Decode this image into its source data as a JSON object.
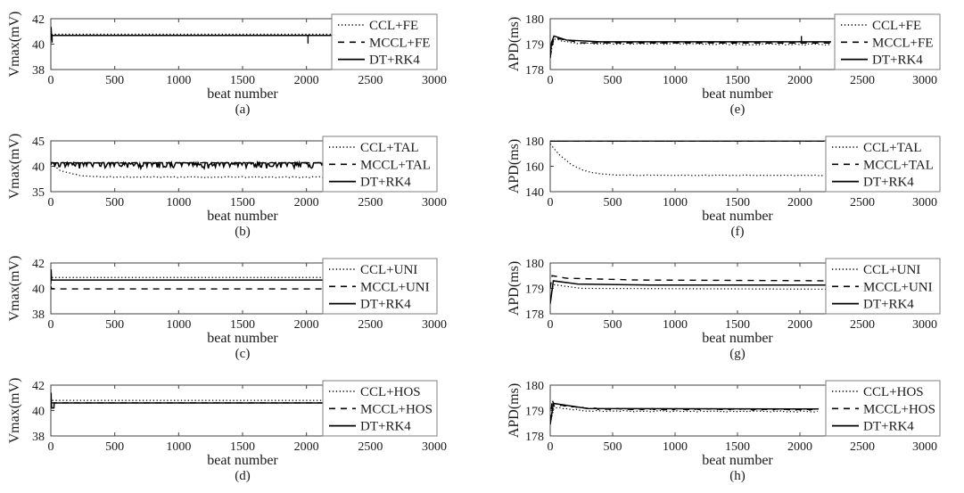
{
  "figure": {
    "background": "#ffffff",
    "line_color": "#000000",
    "axis_color": "#404040",
    "tick_label_color": "#1a1a1a",
    "legend_border_color": "#7f7f7f",
    "xlabel": "beat number"
  },
  "chart_data": [
    {
      "id": "a",
      "type": "line",
      "caption": "(a)",
      "ylabel": "Vmax(mV)",
      "xlabel": "beat number",
      "xlim": [
        0,
        3000
      ],
      "xticks": [
        0,
        500,
        1000,
        1500,
        2000,
        2500,
        3000
      ],
      "ylim": [
        38,
        42
      ],
      "yticks": [
        38,
        40,
        42
      ],
      "grid": false,
      "legend_position": "upper-right",
      "legend": [
        "CCL+FE",
        "MCCL+FE",
        "DT+RK4"
      ],
      "series": [
        {
          "name": "CCL+FE",
          "style": "dotted",
          "points": [
            [
              0,
              41.05
            ],
            [
              4,
              40.78
            ],
            [
              2200,
              40.78
            ]
          ]
        },
        {
          "name": "MCCL+FE",
          "style": "dashed",
          "points": [
            [
              0,
              40.68
            ],
            [
              2200,
              40.68
            ]
          ],
          "spikes": [
            [
              2012,
              40.05
            ]
          ]
        },
        {
          "name": "DT+RK4",
          "style": "solid",
          "points": [
            [
              0,
              40.3
            ],
            [
              2,
              41.35
            ],
            [
              5,
              40.68
            ],
            [
              2200,
              40.68
            ]
          ],
          "spikes": [
            [
              10,
              40.12
            ]
          ]
        }
      ]
    },
    {
      "id": "b",
      "type": "line",
      "caption": "(b)",
      "ylabel": "Vmax(mV)",
      "xlabel": "beat number",
      "xlim": [
        0,
        3000
      ],
      "xticks": [
        0,
        500,
        1000,
        1500,
        2000,
        2500,
        3000
      ],
      "ylim": [
        35,
        45
      ],
      "yticks": [
        35,
        40,
        45
      ],
      "grid": false,
      "legend_position": "upper-right",
      "legend": [
        "CCL+TAL",
        "MCCL+TAL",
        "DT+RK4"
      ],
      "series": [
        {
          "name": "CCL+TAL",
          "style": "dotted",
          "points": [
            [
              0,
              40.45
            ],
            [
              70,
              39.2
            ],
            [
              160,
              38.55
            ],
            [
              260,
              38.1
            ],
            [
              380,
              37.92
            ],
            [
              600,
              37.88
            ],
            [
              2200,
              37.85
            ]
          ],
          "noise": {
            "amp": 0.22,
            "mode": "sym",
            "seed": 11
          },
          "step": 14
        },
        {
          "name": "MCCL+TAL",
          "style": "dashed",
          "points": [
            [
              0,
              40.68
            ],
            [
              2200,
              40.68
            ]
          ],
          "noise": {
            "amp": 0.12,
            "mode": "sym",
            "seed": 5
          },
          "step": 16
        },
        {
          "name": "DT+RK4",
          "style": "solid",
          "points": [
            [
              0,
              40.72
            ],
            [
              2200,
              40.72
            ]
          ],
          "noise": {
            "amp": 1.15,
            "mode": "down",
            "density": 0.5,
            "seed": 3
          },
          "step": 8
        }
      ]
    },
    {
      "id": "c",
      "type": "line",
      "caption": "(c)",
      "ylabel": "Vmax(mV)",
      "xlabel": "beat number",
      "xlim": [
        0,
        3000
      ],
      "xticks": [
        0,
        500,
        1000,
        1500,
        2000,
        2500,
        3000
      ],
      "ylim": [
        38,
        42
      ],
      "yticks": [
        38,
        40,
        42
      ],
      "grid": false,
      "legend_position": "upper-right",
      "legend": [
        "CCL+UNI",
        "MCCL+UNI",
        "DT+RK4"
      ],
      "series": [
        {
          "name": "CCL+UNI",
          "style": "dotted",
          "points": [
            [
              0,
              41.1
            ],
            [
              5,
              40.86
            ],
            [
              2200,
              40.86
            ]
          ]
        },
        {
          "name": "MCCL+UNI",
          "style": "dashed",
          "points": [
            [
              0,
              40.18
            ],
            [
              6,
              39.96
            ],
            [
              2200,
              39.96
            ]
          ]
        },
        {
          "name": "DT+RK4",
          "style": "solid",
          "points": [
            [
              0,
              40.35
            ],
            [
              2,
              41.5
            ],
            [
              6,
              40.66
            ],
            [
              2200,
              40.66
            ]
          ]
        }
      ]
    },
    {
      "id": "d",
      "type": "line",
      "caption": "(d)",
      "ylabel": "Vmax(mV)",
      "xlabel": "beat number",
      "xlim": [
        0,
        3000
      ],
      "xticks": [
        0,
        500,
        1000,
        1500,
        2000,
        2500,
        3000
      ],
      "ylim": [
        38,
        42
      ],
      "yticks": [
        38,
        40,
        42
      ],
      "grid": false,
      "legend_position": "upper-right",
      "legend": [
        "CCL+HOS",
        "MCCL+HOS",
        "DT+RK4"
      ],
      "series": [
        {
          "name": "CCL+HOS",
          "style": "dotted",
          "points": [
            [
              0,
              41.0
            ],
            [
              4,
              40.8
            ],
            [
              2150,
              40.8
            ]
          ]
        },
        {
          "name": "MCCL+HOS",
          "style": "dashed",
          "points": [
            [
              0,
              40.6
            ],
            [
              2150,
              40.6
            ]
          ]
        },
        {
          "name": "DT+RK4",
          "style": "solid",
          "points": [
            [
              0,
              40.4
            ],
            [
              2,
              41.4
            ],
            [
              4,
              40.6
            ],
            [
              6,
              40.2
            ],
            [
              24,
              40.2
            ],
            [
              26,
              40.6
            ],
            [
              2150,
              40.6
            ]
          ]
        }
      ]
    },
    {
      "id": "e",
      "type": "line",
      "caption": "(e)",
      "ylabel": "APD(ms)",
      "xlabel": "beat number",
      "xlim": [
        0,
        3000
      ],
      "xticks": [
        0,
        500,
        1000,
        1500,
        2000,
        2500,
        3000
      ],
      "ylim": [
        178,
        180
      ],
      "yticks": [
        178,
        179,
        180
      ],
      "grid": false,
      "legend_position": "upper-right",
      "legend": [
        "CCL+FE",
        "MCCL+FE",
        "DT+RK4"
      ],
      "series": [
        {
          "name": "CCL+FE",
          "style": "dotted",
          "points": [
            [
              0,
              178.55
            ],
            [
              30,
              179.2
            ],
            [
              200,
              179.02
            ],
            [
              2250,
              178.98
            ]
          ],
          "noise": {
            "amp": 0.06,
            "mode": "sym",
            "seed": 9
          },
          "step": 15
        },
        {
          "name": "MCCL+FE",
          "style": "dashed",
          "points": [
            [
              0,
              178.5
            ],
            [
              28,
              179.25
            ],
            [
              250,
              179.05
            ],
            [
              2250,
              179.04
            ]
          ]
        },
        {
          "name": "DT+RK4",
          "style": "solid",
          "points": [
            [
              0,
              178.45
            ],
            [
              10,
              179.05
            ],
            [
              30,
              179.32
            ],
            [
              130,
              179.16
            ],
            [
              400,
              179.09
            ],
            [
              2250,
              179.09
            ]
          ],
          "spikes": [
            [
              2012,
              179.32
            ]
          ]
        }
      ]
    },
    {
      "id": "f",
      "type": "line",
      "caption": "(f)",
      "ylabel": "APD(ms)",
      "xlabel": "beat number",
      "xlim": [
        0,
        3000
      ],
      "xticks": [
        0,
        500,
        1000,
        1500,
        2000,
        2500,
        3000
      ],
      "ylim": [
        140,
        180
      ],
      "yticks": [
        140,
        160,
        180
      ],
      "grid": false,
      "legend_position": "upper-right",
      "legend": [
        "CCL+TAL",
        "MCCL+TAL",
        "DT+RK4"
      ],
      "series": [
        {
          "name": "CCL+TAL",
          "style": "dotted",
          "points": [
            [
              0,
              177.6
            ],
            [
              80,
              168.5
            ],
            [
              170,
              161.3
            ],
            [
              270,
              156.6
            ],
            [
              390,
              154.1
            ],
            [
              550,
              153.1
            ],
            [
              800,
              152.9
            ],
            [
              2200,
              152.8
            ]
          ],
          "noise": {
            "amp": 0.5,
            "mode": "sym",
            "seed": 13
          },
          "step": 12
        },
        {
          "name": "MCCL+TAL",
          "style": "dashed",
          "points": [
            [
              0,
              179.75
            ],
            [
              2200,
              179.75
            ]
          ]
        },
        {
          "name": "DT+RK4",
          "style": "solid",
          "points": [
            [
              0,
              179.9
            ],
            [
              2200,
              179.9
            ]
          ],
          "noise": {
            "amp": 0.12,
            "mode": "sym",
            "seed": 4
          },
          "step": 14
        }
      ]
    },
    {
      "id": "g",
      "type": "line",
      "caption": "(g)",
      "ylabel": "APD(ms)",
      "xlabel": "beat number",
      "xlim": [
        0,
        3000
      ],
      "xticks": [
        0,
        500,
        1000,
        1500,
        2000,
        2500,
        3000
      ],
      "ylim": [
        178,
        180
      ],
      "yticks": [
        178,
        179,
        180
      ],
      "grid": false,
      "legend_position": "upper-right",
      "legend": [
        "CCL+UNI",
        "MCCL+UNI",
        "DT+RK4"
      ],
      "series": [
        {
          "name": "CCL+UNI",
          "style": "dotted",
          "points": [
            [
              0,
              178.5
            ],
            [
              25,
              179.15
            ],
            [
              250,
              179.0
            ],
            [
              2250,
              178.97
            ]
          ]
        },
        {
          "name": "MCCL+UNI",
          "style": "dashed",
          "points": [
            [
              0,
              179.0
            ],
            [
              15,
              179.5
            ],
            [
              130,
              179.4
            ],
            [
              700,
              179.33
            ],
            [
              2250,
              179.3
            ]
          ]
        },
        {
          "name": "DT+RK4",
          "style": "solid",
          "points": [
            [
              0,
              178.4
            ],
            [
              25,
              179.3
            ],
            [
              220,
              179.17
            ],
            [
              800,
              179.13
            ],
            [
              2250,
              179.13
            ]
          ]
        }
      ]
    },
    {
      "id": "h",
      "type": "line",
      "caption": "(h)",
      "ylabel": "APD(ms)",
      "xlabel": "beat number",
      "xlim": [
        0,
        3000
      ],
      "xticks": [
        0,
        500,
        1000,
        1500,
        2000,
        2500,
        3000
      ],
      "ylim": [
        178,
        180
      ],
      "yticks": [
        178,
        179,
        180
      ],
      "grid": false,
      "legend_position": "upper-right",
      "legend": [
        "CCL+HOS",
        "MCCL+HOS",
        "DT+RK4"
      ],
      "series": [
        {
          "name": "CCL+HOS",
          "style": "dotted",
          "points": [
            [
              0,
              178.5
            ],
            [
              30,
              179.12
            ],
            [
              300,
              178.98
            ],
            [
              2150,
              178.96
            ]
          ],
          "noise": {
            "amp": 0.05,
            "mode": "sym",
            "seed": 21
          },
          "step": 14
        },
        {
          "name": "MCCL+HOS",
          "style": "dashed",
          "points": [
            [
              0,
              178.6
            ],
            [
              12,
              179.5
            ],
            [
              30,
              179.18
            ],
            [
              90,
              179.2
            ],
            [
              400,
              179.06
            ],
            [
              2150,
              179.04
            ]
          ],
          "noise": {
            "amp": 0.05,
            "mode": "sym",
            "seed": 8
          },
          "step": 16
        },
        {
          "name": "DT+RK4",
          "style": "solid",
          "points": [
            [
              0,
              178.45
            ],
            [
              25,
              179.28
            ],
            [
              300,
              179.08
            ],
            [
              2150,
              179.06
            ]
          ]
        }
      ]
    }
  ]
}
